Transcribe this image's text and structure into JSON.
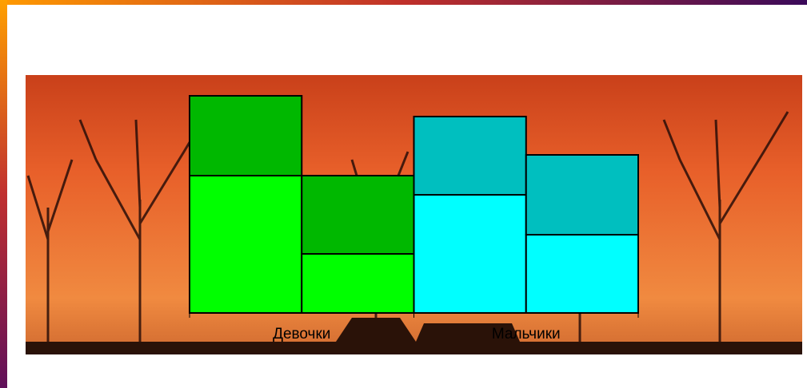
{
  "chart_data": {
    "type": "grouped-stacked-bar",
    "categories": [
      "Девочки",
      "Мальчики"
    ],
    "groups": [
      {
        "colors": [
          "#00ff00",
          "#00b800"
        ],
        "stacks": [
          [
            172,
            100
          ],
          [
            74,
            98
          ]
        ]
      },
      {
        "colors": [
          "#00ffff",
          "#00bfbf"
        ],
        "stacks": [
          [
            148,
            98
          ],
          [
            98,
            100
          ]
        ]
      }
    ],
    "ylim": [
      0,
      272
    ]
  }
}
